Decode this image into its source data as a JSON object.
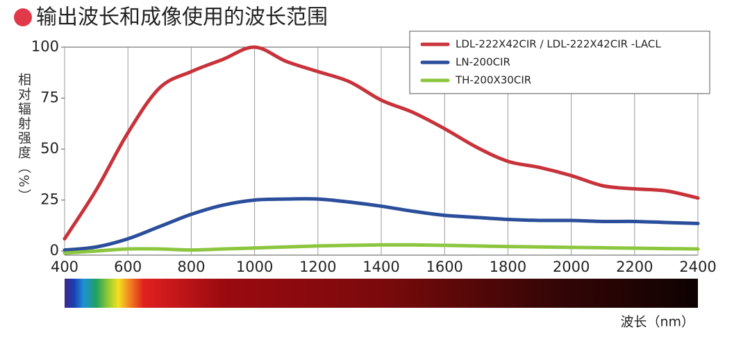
{
  "chart_data": {
    "type": "line",
    "title": "输出波长和成像使用的波长范围",
    "y_label": "相对辐射强度（%）",
    "x_label": "波长（nm）",
    "x": [
      400,
      500,
      600,
      700,
      800,
      900,
      1000,
      1100,
      1200,
      1300,
      1400,
      1500,
      1600,
      1700,
      1800,
      1900,
      2000,
      2100,
      2200,
      2300,
      2400
    ],
    "series": [
      {
        "name": "LDL-222X42CIR / LDL-222X42CIR -LACL",
        "color": "#c8323a",
        "values": [
          6,
          30,
          58,
          80,
          88,
          94,
          100,
          93,
          88,
          83,
          74,
          68,
          60,
          51,
          44,
          41,
          37,
          32,
          30.5,
          29.5,
          26
        ]
      },
      {
        "name": "LN-200CIR",
        "color": "#2b4e9b",
        "values": [
          0.5,
          2,
          6,
          12,
          18,
          22.5,
          25,
          25.5,
          25.5,
          24,
          22,
          19.5,
          17.5,
          16.5,
          15.5,
          15,
          15,
          14.5,
          14.5,
          14,
          13.5
        ]
      },
      {
        "name": "TH-200X30CIR",
        "color": "#8cc63f",
        "values": [
          -1,
          0,
          1,
          1,
          0.5,
          1,
          1.5,
          2,
          2.5,
          2.8,
          3,
          3,
          2.8,
          2.5,
          2.2,
          2,
          1.8,
          1.6,
          1.4,
          1.2,
          1
        ]
      }
    ],
    "xlim": [
      400,
      2400
    ],
    "xticks": [
      400,
      600,
      800,
      1000,
      1200,
      1400,
      1600,
      1800,
      2000,
      2200,
      2400
    ],
    "ylim": [
      -2,
      100
    ],
    "yticks": [
      0,
      25,
      50,
      75,
      100
    ],
    "grid": true,
    "legend": "upper right"
  }
}
